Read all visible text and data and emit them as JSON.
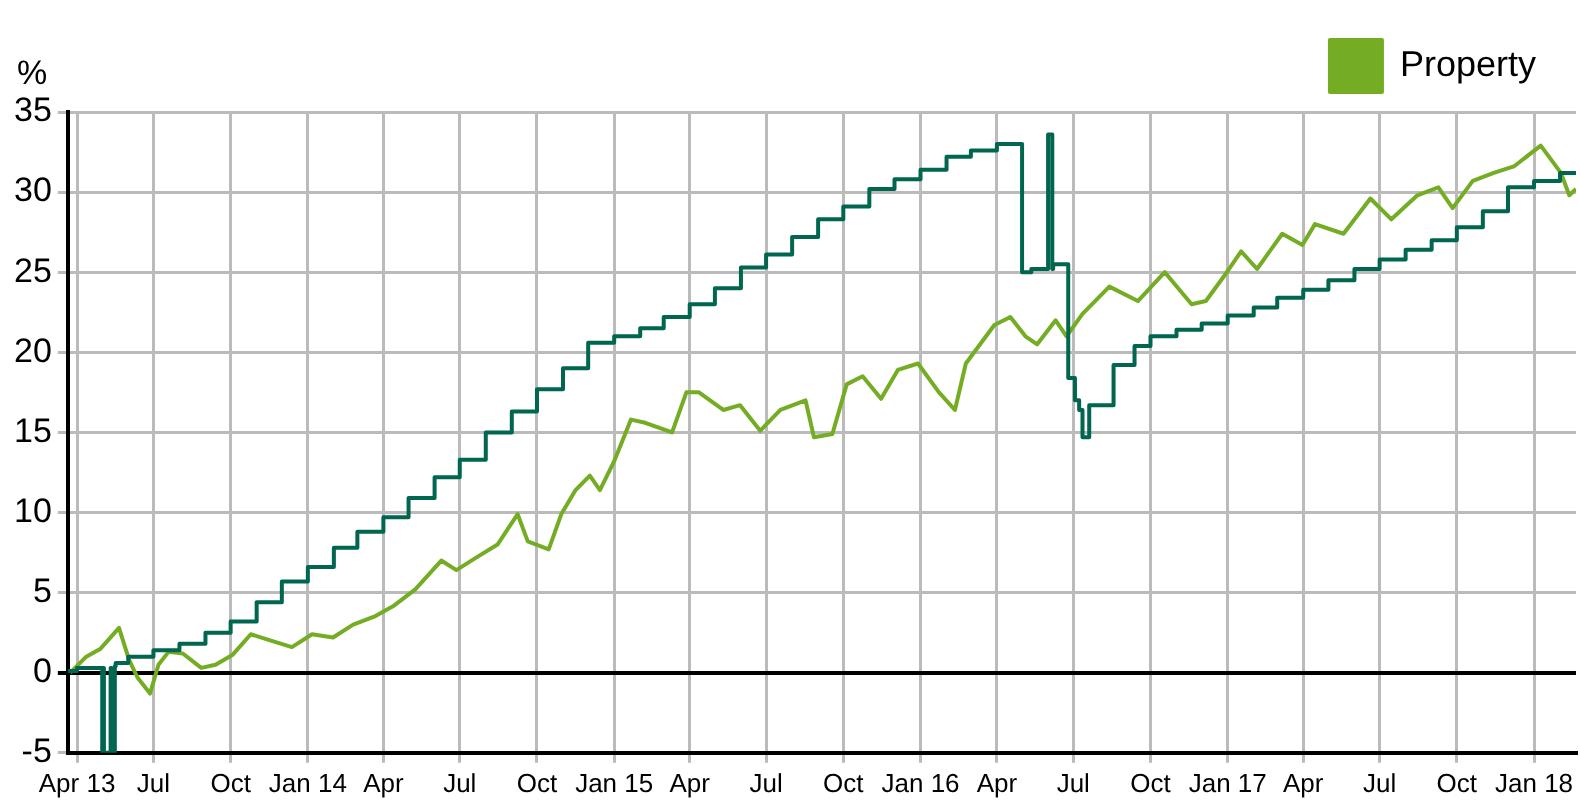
{
  "chart_data": {
    "type": "line",
    "ylabel": "%",
    "legend": "top",
    "grid": true,
    "marker": "none",
    "line_style": "solid",
    "xlim": [
      "2013-03-21",
      "2018-02-20"
    ],
    "xticks": [
      {
        "value": "2013-04-01",
        "label": "Apr 13"
      },
      {
        "value": "2013-07-01",
        "label": "Jul"
      },
      {
        "value": "2013-10-01",
        "label": "Oct"
      },
      {
        "value": "2014-01-01",
        "label": "Jan 14"
      },
      {
        "value": "2014-04-01",
        "label": "Apr"
      },
      {
        "value": "2014-07-01",
        "label": "Jul"
      },
      {
        "value": "2014-10-01",
        "label": "Oct"
      },
      {
        "value": "2015-01-01",
        "label": "Jan 15"
      },
      {
        "value": "2015-04-01",
        "label": "Apr"
      },
      {
        "value": "2015-07-01",
        "label": "Jul"
      },
      {
        "value": "2015-10-01",
        "label": "Oct"
      },
      {
        "value": "2016-01-01",
        "label": "Jan 16"
      },
      {
        "value": "2016-04-01",
        "label": "Apr"
      },
      {
        "value": "2016-07-01",
        "label": "Jul"
      },
      {
        "value": "2016-10-01",
        "label": "Oct"
      },
      {
        "value": "2017-01-01",
        "label": "Jan 17"
      },
      {
        "value": "2017-04-01",
        "label": "Apr"
      },
      {
        "value": "2017-07-01",
        "label": "Jul"
      },
      {
        "value": "2017-10-01",
        "label": "Oct"
      },
      {
        "value": "2018-01-01",
        "label": "Jan 18"
      }
    ],
    "ylim": [
      -5,
      35
    ],
    "yticks": [
      -5,
      0,
      5,
      10,
      15,
      20,
      25,
      30,
      35
    ],
    "series": [
      {
        "type": "step",
        "color": "#00664f",
        "x": [
          "2013-03-22",
          "2013-04-01",
          "2013-05-01",
          "2013-05-02",
          "2013-05-03",
          "2013-05-11",
          "2013-05-12",
          "2013-05-16",
          "2013-05-17",
          "2013-06-01",
          "2013-07-01",
          "2013-08-01",
          "2013-09-01",
          "2013-10-01",
          "2013-11-01",
          "2013-12-01",
          "2014-01-01",
          "2014-02-01",
          "2014-03-01",
          "2014-04-01",
          "2014-05-01",
          "2014-06-01",
          "2014-07-01",
          "2014-08-01",
          "2014-09-01",
          "2014-10-01",
          "2014-11-01",
          "2014-12-01",
          "2015-01-01",
          "2015-02-01",
          "2015-03-01",
          "2015-04-01",
          "2015-05-01",
          "2015-06-01",
          "2015-07-01",
          "2015-08-01",
          "2015-09-01",
          "2015-10-01",
          "2015-11-01",
          "2015-12-01",
          "2016-01-01",
          "2016-02-01",
          "2016-03-01",
          "2016-04-01",
          "2016-05-01",
          "2016-05-12",
          "2016-06-01",
          "2016-06-06",
          "2016-06-07",
          "2016-06-25",
          "2016-07-03",
          "2016-07-08",
          "2016-07-12",
          "2016-07-20",
          "2016-08-18",
          "2016-09-12",
          "2016-10-01",
          "2016-11-01",
          "2016-12-01",
          "2017-01-01",
          "2017-02-01",
          "2017-03-01",
          "2017-04-01",
          "2017-05-01",
          "2017-06-01",
          "2017-07-01",
          "2017-08-01",
          "2017-09-01",
          "2017-10-01",
          "2017-11-01",
          "2017-12-01",
          "2018-01-01",
          "2018-02-01",
          "2018-02-20"
        ],
        "values": [
          0,
          0.1,
          0.3,
          -5,
          0.3,
          -5,
          0.3,
          -5,
          0.4,
          0.6,
          1.0,
          1.4,
          1.8,
          2.5,
          3.2,
          4.4,
          5.7,
          6.6,
          7.8,
          8.8,
          9.7,
          10.9,
          12.2,
          13.3,
          15.0,
          16.3,
          17.7,
          19.0,
          20.6,
          21.0,
          21.5,
          22.2,
          23.0,
          24.0,
          25.3,
          26.1,
          27.2,
          28.3,
          29.1,
          30.2,
          30.8,
          31.4,
          32.2,
          32.6,
          33.0,
          25.0,
          25.2,
          33.6,
          25.2,
          25.5,
          18.4,
          17.0,
          16.4,
          14.7,
          16.7,
          19.2,
          20.4,
          21.0,
          21.4,
          21.8,
          22.3,
          22.8,
          23.4,
          23.9,
          24.5,
          25.2,
          25.8,
          26.4,
          27.0,
          27.8,
          28.8,
          30.3,
          30.7,
          31.2
        ]
      },
      {
        "name": "Property",
        "color": "#74ad24",
        "x": [
          "2013-03-24",
          "2013-04-12",
          "2013-04-29",
          "2013-05-21",
          "2013-06-02",
          "2013-06-12",
          "2013-06-27",
          "2013-07-07",
          "2013-07-19",
          "2013-08-05",
          "2013-08-27",
          "2013-09-13",
          "2013-10-03",
          "2013-10-25",
          "2013-11-18",
          "2013-12-13",
          "2014-01-06",
          "2014-01-31",
          "2014-02-24",
          "2014-03-21",
          "2014-04-14",
          "2014-05-09",
          "2014-06-09",
          "2014-06-27",
          "2014-07-21",
          "2014-08-15",
          "2014-09-08",
          "2014-09-20",
          "2014-10-15",
          "2014-10-30",
          "2014-11-16",
          "2014-12-03",
          "2014-12-15",
          "2015-01-01",
          "2015-01-21",
          "2015-02-07",
          "2015-03-11",
          "2015-03-28",
          "2015-04-12",
          "2015-05-11",
          "2015-05-31",
          "2015-06-24",
          "2015-07-18",
          "2015-08-17",
          "2015-08-27",
          "2015-09-18",
          "2015-10-05",
          "2015-10-24",
          "2015-11-15",
          "2015-12-05",
          "2015-12-29",
          "2016-01-23",
          "2016-02-11",
          "2016-02-24",
          "2016-03-29",
          "2016-04-17",
          "2016-05-05",
          "2016-05-19",
          "2016-06-10",
          "2016-06-23",
          "2016-07-12",
          "2016-08-13",
          "2016-09-16",
          "2016-10-18",
          "2016-11-19",
          "2016-12-06",
          "2016-12-31",
          "2017-01-17",
          "2017-02-05",
          "2017-03-07",
          "2017-03-31",
          "2017-04-15",
          "2017-05-19",
          "2017-06-20",
          "2017-07-15",
          "2017-08-15",
          "2017-09-09",
          "2017-09-26",
          "2017-10-20",
          "2017-11-14",
          "2017-12-08",
          "2018-01-09",
          "2018-02-02",
          "2018-02-12",
          "2018-02-20"
        ],
        "values": [
          0,
          1.0,
          1.5,
          2.8,
          0.8,
          -0.3,
          -1.3,
          0.5,
          1.3,
          1.2,
          0.3,
          0.5,
          1.1,
          2.4,
          2.0,
          1.6,
          2.4,
          2.2,
          3.0,
          3.5,
          4.2,
          5.2,
          7.0,
          6.4,
          7.2,
          8.0,
          9.9,
          8.2,
          7.7,
          9.9,
          11.4,
          12.3,
          11.4,
          13.2,
          15.8,
          15.6,
          15.0,
          17.5,
          17.5,
          16.4,
          16.7,
          15.1,
          16.4,
          17.0,
          14.7,
          14.9,
          18.0,
          18.5,
          17.1,
          18.9,
          19.3,
          17.5,
          16.4,
          19.3,
          21.7,
          22.2,
          21.0,
          20.5,
          22.0,
          21.0,
          22.4,
          24.1,
          23.2,
          25.0,
          23.0,
          23.2,
          25.0,
          26.3,
          25.2,
          27.4,
          26.7,
          28.0,
          27.4,
          29.6,
          28.3,
          29.8,
          30.3,
          29.0,
          30.7,
          31.2,
          31.6,
          32.9,
          31.2,
          29.8,
          30.2
        ]
      }
    ]
  }
}
